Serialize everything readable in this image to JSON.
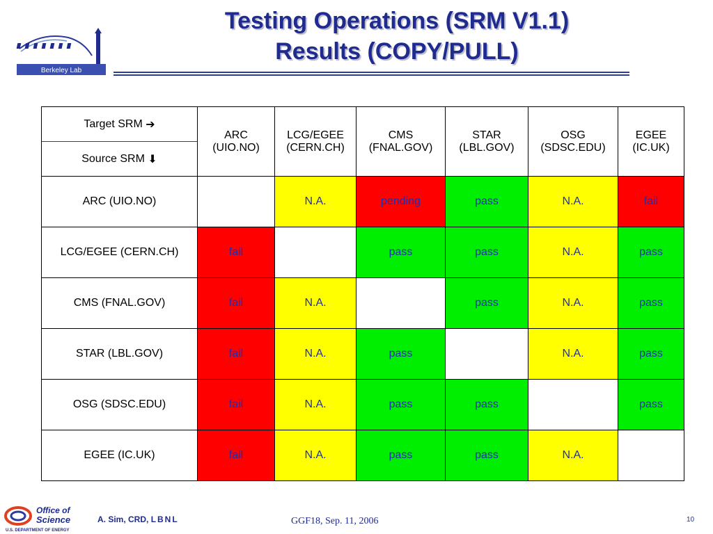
{
  "header": {
    "title_line1": "Testing Operations (SRM V1.1)",
    "title_line2": "Results (COPY/PULL)",
    "logo_text": "Berkeley Lab"
  },
  "table": {
    "target_label": "Target SRM",
    "source_label": "Source SRM",
    "target_arrow_icon": "arrow-right-icon",
    "source_arrow_icon": "arrow-down-icon",
    "columns": [
      {
        "line1": "ARC",
        "line2": "(UIO.NO)"
      },
      {
        "line1": "LCG/EGEE",
        "line2": "(CERN.CH)"
      },
      {
        "line1": "CMS",
        "line2": "(FNAL.GOV)"
      },
      {
        "line1": "STAR",
        "line2": "(LBL.GOV)"
      },
      {
        "line1": "OSG",
        "line2": "(SDSC.EDU)"
      },
      {
        "line1": "EGEE",
        "line2": "(IC.UK)"
      }
    ],
    "rows": [
      {
        "source": "ARC (UIO.NO)",
        "cells": [
          {
            "text": "",
            "status": "white"
          },
          {
            "text": "N.A.",
            "status": "yellow"
          },
          {
            "text": "pending",
            "status": "red"
          },
          {
            "text": "pass",
            "status": "green"
          },
          {
            "text": "N.A.",
            "status": "yellow"
          },
          {
            "text": "fail",
            "status": "red"
          }
        ]
      },
      {
        "source": "LCG/EGEE (CERN.CH)",
        "cells": [
          {
            "text": "fail",
            "status": "red"
          },
          {
            "text": "",
            "status": "white"
          },
          {
            "text": "pass",
            "status": "green"
          },
          {
            "text": "pass",
            "status": "green"
          },
          {
            "text": "N.A.",
            "status": "yellow"
          },
          {
            "text": "pass",
            "status": "green"
          }
        ]
      },
      {
        "source": "CMS (FNAL.GOV)",
        "cells": [
          {
            "text": "fail",
            "status": "red"
          },
          {
            "text": "N.A.",
            "status": "yellow"
          },
          {
            "text": "",
            "status": "white"
          },
          {
            "text": "pass",
            "status": "green"
          },
          {
            "text": "N.A.",
            "status": "yellow"
          },
          {
            "text": "pass",
            "status": "green"
          }
        ]
      },
      {
        "source": "STAR (LBL.GOV)",
        "cells": [
          {
            "text": "fail",
            "status": "red"
          },
          {
            "text": "N.A.",
            "status": "yellow"
          },
          {
            "text": "pass",
            "status": "green"
          },
          {
            "text": "",
            "status": "white"
          },
          {
            "text": "N.A.",
            "status": "yellow"
          },
          {
            "text": "pass",
            "status": "green"
          }
        ]
      },
      {
        "source": "OSG (SDSC.EDU)",
        "cells": [
          {
            "text": "fail",
            "status": "red"
          },
          {
            "text": "N.A.",
            "status": "yellow"
          },
          {
            "text": "pass",
            "status": "green"
          },
          {
            "text": "pass",
            "status": "green"
          },
          {
            "text": "",
            "status": "white"
          },
          {
            "text": "pass",
            "status": "green"
          }
        ]
      },
      {
        "source": "EGEE (IC.UK)",
        "cells": [
          {
            "text": "fail",
            "status": "red"
          },
          {
            "text": "N.A.",
            "status": "yellow"
          },
          {
            "text": "pass",
            "status": "green"
          },
          {
            "text": "pass",
            "status": "green"
          },
          {
            "text": "N.A.",
            "status": "yellow"
          },
          {
            "text": "",
            "status": "white"
          }
        ]
      }
    ]
  },
  "footer": {
    "logo_line1": "Office of",
    "logo_line2": "Science",
    "logo_line3": "U.S. DEPARTMENT OF ENERGY",
    "author_prefix": "A. Sim, CRD, ",
    "author_org": "LBNL",
    "event": "GGF18,  Sep. 11, 2006",
    "page_number": "10"
  },
  "colors": {
    "title": "#1f2b8f",
    "red": "#ff0000",
    "yellow": "#ffff00",
    "green": "#00ee00",
    "cell_text": "#1f2fb0"
  }
}
